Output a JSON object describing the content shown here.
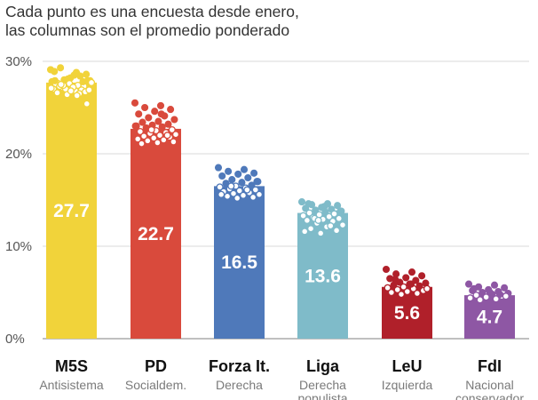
{
  "chart_data": {
    "type": "bar",
    "title": "",
    "subtitle_lines": [
      "Cada punto es una encuesta desde enero,",
      "las columnas son el promedio ponderado"
    ],
    "xlabel": "",
    "ylabel": "",
    "ylim": [
      0,
      30
    ],
    "y_ticks": [
      0,
      10,
      20,
      30
    ],
    "y_tick_labels": [
      "0%",
      "10%",
      "20%",
      "30%"
    ],
    "grid": true,
    "legend": "none",
    "categories": [
      "M5S",
      "PD",
      "Forza It.",
      "Liga",
      "LeU",
      "FdI"
    ],
    "descriptions": [
      [
        "Antisistema"
      ],
      [
        "Socialdem."
      ],
      [
        "Derecha"
      ],
      [
        "Derecha",
        "populista"
      ],
      [
        "Izquierda"
      ],
      [
        "Nacional",
        "conservador"
      ]
    ],
    "values": [
      27.7,
      22.7,
      16.5,
      13.6,
      5.6,
      4.7
    ],
    "value_labels": [
      "27.7",
      "22.7",
      "16.5",
      "13.6",
      "5.6",
      "4.7"
    ],
    "colors": [
      "#f1d33a",
      "#d94a3c",
      "#4f79ba",
      "#7fbbc9",
      "#b0202a",
      "#8e57a4"
    ],
    "poll_points": [
      [
        29.1,
        28.8,
        29.3,
        28.6,
        28.2,
        28.9,
        28.4,
        28.0,
        27.9,
        28.5,
        27.6,
        27.3,
        28.1,
        27.8,
        27.4,
        27.2,
        27.9,
        27.1,
        27.5,
        26.9,
        27.0,
        27.7,
        26.8,
        27.3,
        26.7,
        27.6,
        27.0,
        26.5,
        27.4,
        26.9,
        27.2,
        26.6,
        27.8,
        26.4,
        27.1,
        26.3,
        27.5,
        25.4,
        26.8,
        27.9
      ],
      [
        25.5,
        25.2,
        25.0,
        24.8,
        24.6,
        24.3,
        24.1,
        23.9,
        23.7,
        23.5,
        23.4,
        23.2,
        23.1,
        23.0,
        22.9,
        22.8,
        22.6,
        22.5,
        22.4,
        22.3,
        22.2,
        22.1,
        22.0,
        21.9,
        21.8,
        21.7,
        21.6,
        21.5,
        21.4,
        21.3,
        21.2,
        21.1,
        22.0,
        22.6,
        23.0,
        24.3
      ],
      [
        18.5,
        18.3,
        18.1,
        17.9,
        17.8,
        17.6,
        17.4,
        17.2,
        17.0,
        16.9,
        16.8,
        16.6,
        16.5,
        16.4,
        16.3,
        16.2,
        16.1,
        16.0,
        15.9,
        15.8,
        15.7,
        15.6,
        15.5,
        15.4,
        15.3,
        15.2,
        15.6,
        16.1,
        16.5,
        17.0
      ],
      [
        14.8,
        14.6,
        14.5,
        14.4,
        14.2,
        14.1,
        14.0,
        13.9,
        13.8,
        13.7,
        13.6,
        13.5,
        13.4,
        13.3,
        13.2,
        13.1,
        13.0,
        12.9,
        12.8,
        12.7,
        12.5,
        12.3,
        12.1,
        11.9,
        11.7,
        11.4,
        11.6,
        12.2,
        13.0,
        13.8,
        14.3,
        14.6,
        13.5,
        12.8
      ],
      [
        7.5,
        7.2,
        7.0,
        6.8,
        6.6,
        6.5,
        6.3,
        6.1,
        6.0,
        5.9,
        5.8,
        5.7,
        5.6,
        5.5,
        5.4,
        5.3,
        5.2,
        5.1,
        5.0,
        4.9,
        4.8,
        5.4,
        5.9,
        6.4
      ],
      [
        5.9,
        5.8,
        5.6,
        5.5,
        5.3,
        5.2,
        5.1,
        5.0,
        4.9,
        4.8,
        4.7,
        4.6,
        4.5,
        4.4,
        4.3,
        4.2,
        4.6,
        5.0,
        5.4,
        4.8
      ]
    ]
  }
}
